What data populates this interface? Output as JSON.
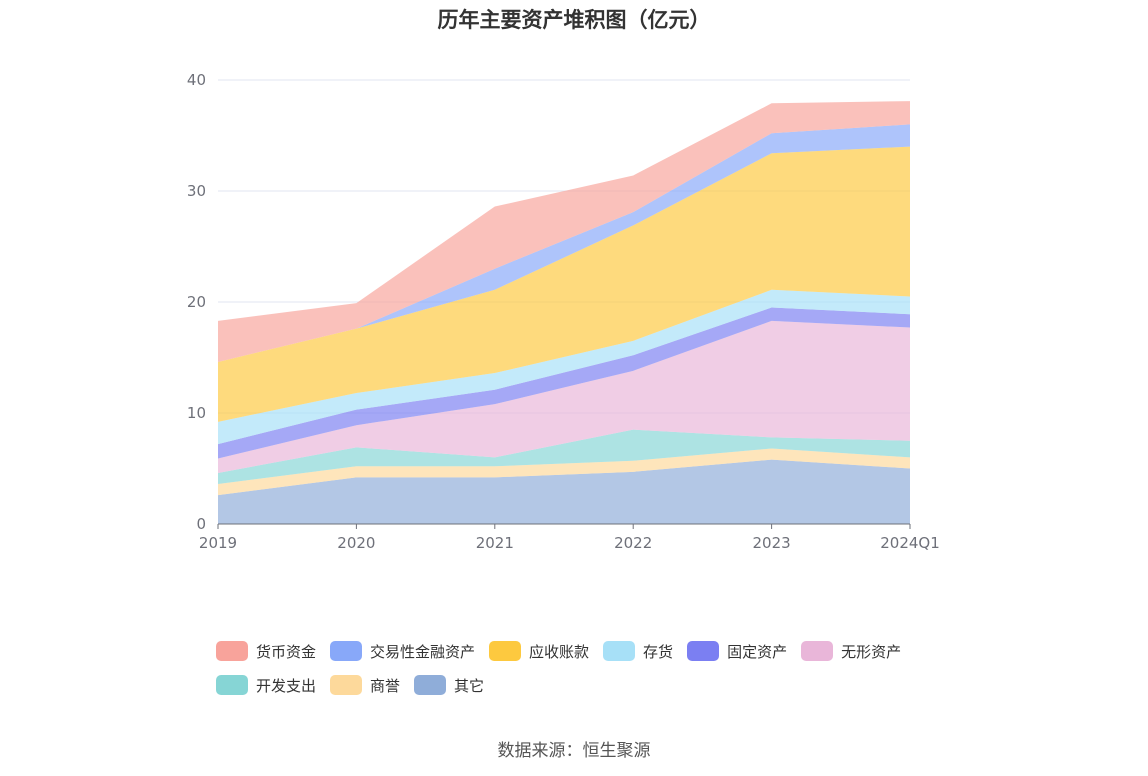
{
  "title": "历年主要资产堆积图（亿元）",
  "source": "数据来源：恒生聚源",
  "chart_data": {
    "type": "area",
    "stacked": true,
    "title": "历年主要资产堆积图（亿元）",
    "xlabel": "",
    "ylabel": "",
    "x": [
      "2019",
      "2020",
      "2021",
      "2022",
      "2023",
      "2024Q1"
    ],
    "ylim": [
      0,
      40
    ],
    "yticks": [
      0,
      10,
      20,
      30,
      40
    ],
    "grid": true,
    "legend_position": "bottom",
    "series": [
      {
        "name": "其它",
        "color": "#8fadd9",
        "values": [
          2.6,
          4.2,
          4.2,
          4.7,
          5.8,
          5.0
        ]
      },
      {
        "name": "商誉",
        "color": "#fdd99b",
        "values": [
          1.0,
          1.0,
          1.0,
          1.0,
          1.0,
          1.0
        ]
      },
      {
        "name": "开发支出",
        "color": "#86d5d5",
        "values": [
          1.0,
          1.7,
          0.8,
          2.8,
          1.0,
          1.5
        ]
      },
      {
        "name": "无形资产",
        "color": "#e9b6d9",
        "values": [
          1.3,
          2.0,
          4.8,
          5.3,
          10.5,
          10.2
        ]
      },
      {
        "name": "固定资产",
        "color": "#7b7ff2",
        "values": [
          1.3,
          1.4,
          1.3,
          1.4,
          1.2,
          1.2
        ]
      },
      {
        "name": "存货",
        "color": "#a7e0f7",
        "values": [
          2.0,
          1.5,
          1.5,
          1.3,
          1.6,
          1.6
        ]
      },
      {
        "name": "应收账款",
        "color": "#fdc93f",
        "values": [
          5.4,
          5.8,
          7.5,
          10.4,
          12.3,
          13.5
        ]
      },
      {
        "name": "交易性金融资产",
        "color": "#88a8f9",
        "values": [
          0,
          0,
          1.9,
          1.2,
          1.8,
          2.0
        ]
      },
      {
        "name": "货币资金",
        "color": "#f8a39b",
        "values": [
          3.7,
          2.3,
          5.6,
          3.3,
          2.7,
          2.1
        ]
      }
    ]
  },
  "legend_order": [
    "货币资金",
    "交易性金融资产",
    "应收账款",
    "存货",
    "固定资产",
    "无形资产",
    "开发支出",
    "商誉",
    "其它"
  ]
}
